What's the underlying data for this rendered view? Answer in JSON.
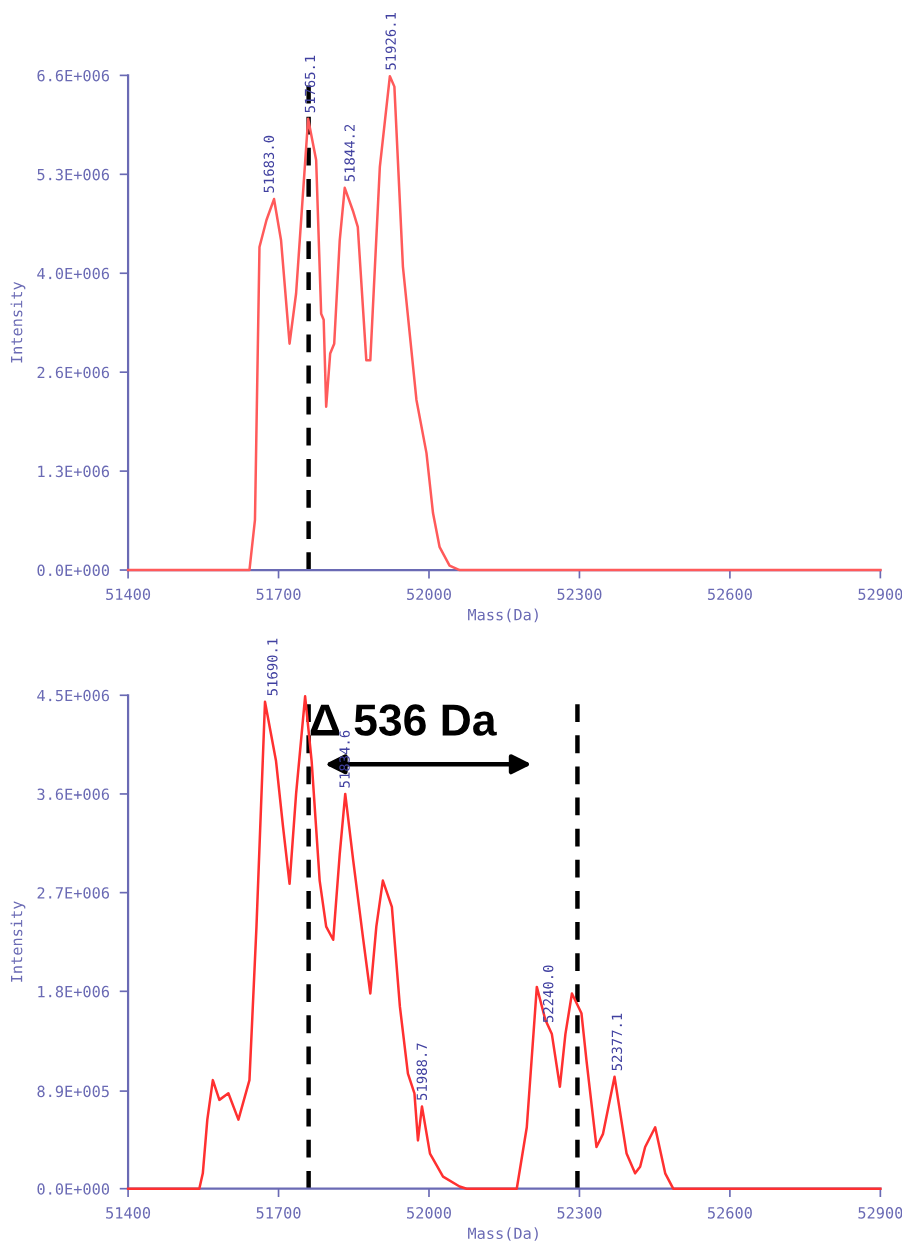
{
  "chart_data": [
    {
      "type": "line",
      "xlabel": "Mass(Da)",
      "ylabel": "Intensity",
      "xlim": [
        51400,
        52900
      ],
      "xticks": [
        51400,
        51700,
        52000,
        52300,
        52600,
        52900
      ],
      "ylim": [
        0,
        6600000
      ],
      "yticks": [
        {
          "value": 0,
          "label": "0.0E+000"
        },
        {
          "value": 1320000,
          "label": "1.3E+006"
        },
        {
          "value": 2640000,
          "label": "2.6E+006"
        },
        {
          "value": 3960000,
          "label": "4.0E+006"
        },
        {
          "value": 5280000,
          "label": "5.3E+006"
        },
        {
          "value": 6600000,
          "label": "6.6E+006"
        }
      ],
      "series": [
        {
          "color": "#ff5a5a",
          "x": [
            51400,
            51642,
            51653,
            51662,
            51676,
            51691,
            51705,
            51722,
            51735,
            51759,
            51775,
            51785,
            51790,
            51795,
            51803,
            51811,
            51822,
            51832,
            51849,
            51858,
            51875,
            51883,
            51902,
            51922,
            51931,
            51948,
            51975,
            51995,
            52008,
            52021,
            52041,
            52061,
            52900
          ],
          "values": [
            0,
            0,
            670000,
            4310000,
            4670000,
            4950000,
            4400000,
            3020000,
            3690000,
            6020000,
            5470000,
            3420000,
            3340000,
            2180000,
            2890000,
            3020000,
            4400000,
            5100000,
            4780000,
            4580000,
            2800000,
            2800000,
            5380000,
            6590000,
            6450000,
            4050000,
            2270000,
            1560000,
            760000,
            310000,
            60000,
            0,
            0
          ]
        }
      ],
      "ref_lines": [
        {
          "axis": "x",
          "value": 51760,
          "color": "#000000",
          "line_style": "dashed"
        }
      ],
      "annotations": [
        {
          "text": "51683.0",
          "x": 51683,
          "y": 4950000
        },
        {
          "text": "51765.1",
          "x": 51765,
          "y": 6020000
        },
        {
          "text": "51844.2",
          "x": 51844,
          "y": 5100000
        },
        {
          "text": "51926.1",
          "x": 51926,
          "y": 6590000
        }
      ]
    },
    {
      "type": "line",
      "xlabel": "Mass(Da)",
      "ylabel": "Intensity",
      "xlim": [
        51400,
        52900
      ],
      "xticks": [
        51400,
        51700,
        52000,
        52300,
        52600,
        52900
      ],
      "ylim": [
        0,
        4500000
      ],
      "yticks": [
        {
          "value": 0,
          "label": "0.0E+000"
        },
        {
          "value": 890000,
          "label": "8.9E+005"
        },
        {
          "value": 1800000,
          "label": "1.8E+006"
        },
        {
          "value": 2700000,
          "label": "2.7E+006"
        },
        {
          "value": 3600000,
          "label": "3.6E+006"
        },
        {
          "value": 4500000,
          "label": "4.5E+006"
        }
      ],
      "series": [
        {
          "color": "#ff3030",
          "x": [
            51400,
            51542,
            51549,
            51558,
            51569,
            51582,
            51600,
            51620,
            51642,
            51656,
            51673,
            51695,
            51709,
            51722,
            51735,
            51753,
            51766,
            51782,
            51795,
            51809,
            51822,
            51833,
            51849,
            51869,
            51883,
            51895,
            51908,
            51926,
            51942,
            51958,
            51971,
            51978,
            51986,
            52002,
            52028,
            52061,
            52075,
            52175,
            52195,
            52215,
            52232,
            52245,
            52261,
            52272,
            52285,
            52304,
            52314,
            52334,
            52347,
            52370,
            52394,
            52411,
            52421,
            52431,
            52451,
            52471,
            52487,
            52900
          ],
          "values": [
            0,
            0,
            140000,
            630000,
            990000,
            810000,
            870000,
            630000,
            990000,
            2390000,
            4440000,
            3900000,
            3300000,
            2780000,
            3600000,
            4490000,
            3900000,
            2810000,
            2390000,
            2270000,
            3050000,
            3600000,
            2990000,
            2270000,
            1780000,
            2390000,
            2810000,
            2570000,
            1660000,
            1050000,
            870000,
            440000,
            750000,
            320000,
            110000,
            20000,
            0,
            0,
            560000,
            1840000,
            1540000,
            1410000,
            930000,
            1410000,
            1780000,
            1600000,
            1170000,
            380000,
            500000,
            1020000,
            320000,
            140000,
            200000,
            380000,
            560000,
            140000,
            0,
            0
          ]
        }
      ],
      "ref_lines": [
        {
          "axis": "x",
          "value": 51760,
          "color": "#000000",
          "line_style": "dashed"
        },
        {
          "axis": "x",
          "value": 52296,
          "color": "#000000",
          "line_style": "dashed"
        }
      ],
      "annotations": [
        "Δ 536 Da",
        {
          "text": "51690.1",
          "x": 51690,
          "y": 4440000
        },
        {
          "text": "51834.6",
          "x": 51834,
          "y": 3600000
        },
        {
          "text": "51988.7",
          "x": 51988,
          "y": 750000
        },
        {
          "text": "52240.0",
          "x": 52240,
          "y": 1460000
        },
        {
          "text": "52377.1",
          "x": 52377,
          "y": 1020000
        }
      ]
    }
  ]
}
